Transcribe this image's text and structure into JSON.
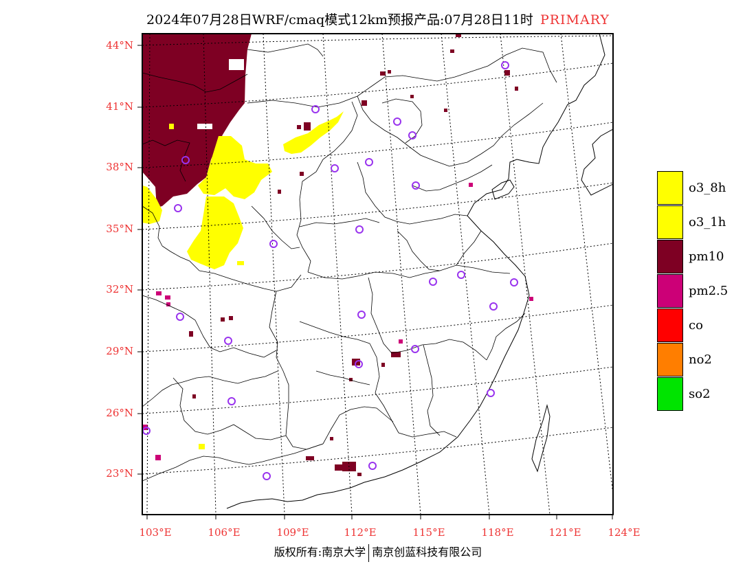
{
  "title": {
    "text": "2024年07月28日WRF/cmaq模式12km预报产品:07月28日11时",
    "flag": "PRIMARY"
  },
  "lat_labels": [
    "44°N",
    "41°N",
    "38°N",
    "35°N",
    "32°N",
    "29°N",
    "26°N",
    "23°N"
  ],
  "lon_labels": [
    "103°E",
    "106°E",
    "109°E",
    "112°E",
    "115°E",
    "118°E",
    "121°E",
    "124°E"
  ],
  "legend": [
    {
      "label": "o3_8h",
      "color": "#ffff00"
    },
    {
      "label": "o3_1h",
      "color": "#ffff00"
    },
    {
      "label": "pm10",
      "color": "#7e0023"
    },
    {
      "label": "pm2.5",
      "color": "#cc0077"
    },
    {
      "label": "co",
      "color": "#ff0000"
    },
    {
      "label": "no2",
      "color": "#ff7e00"
    },
    {
      "label": "so2",
      "color": "#00e400"
    }
  ],
  "footer": {
    "left": "版权所有:南京大学",
    "right": "南京创蓝科技有限公司"
  }
}
